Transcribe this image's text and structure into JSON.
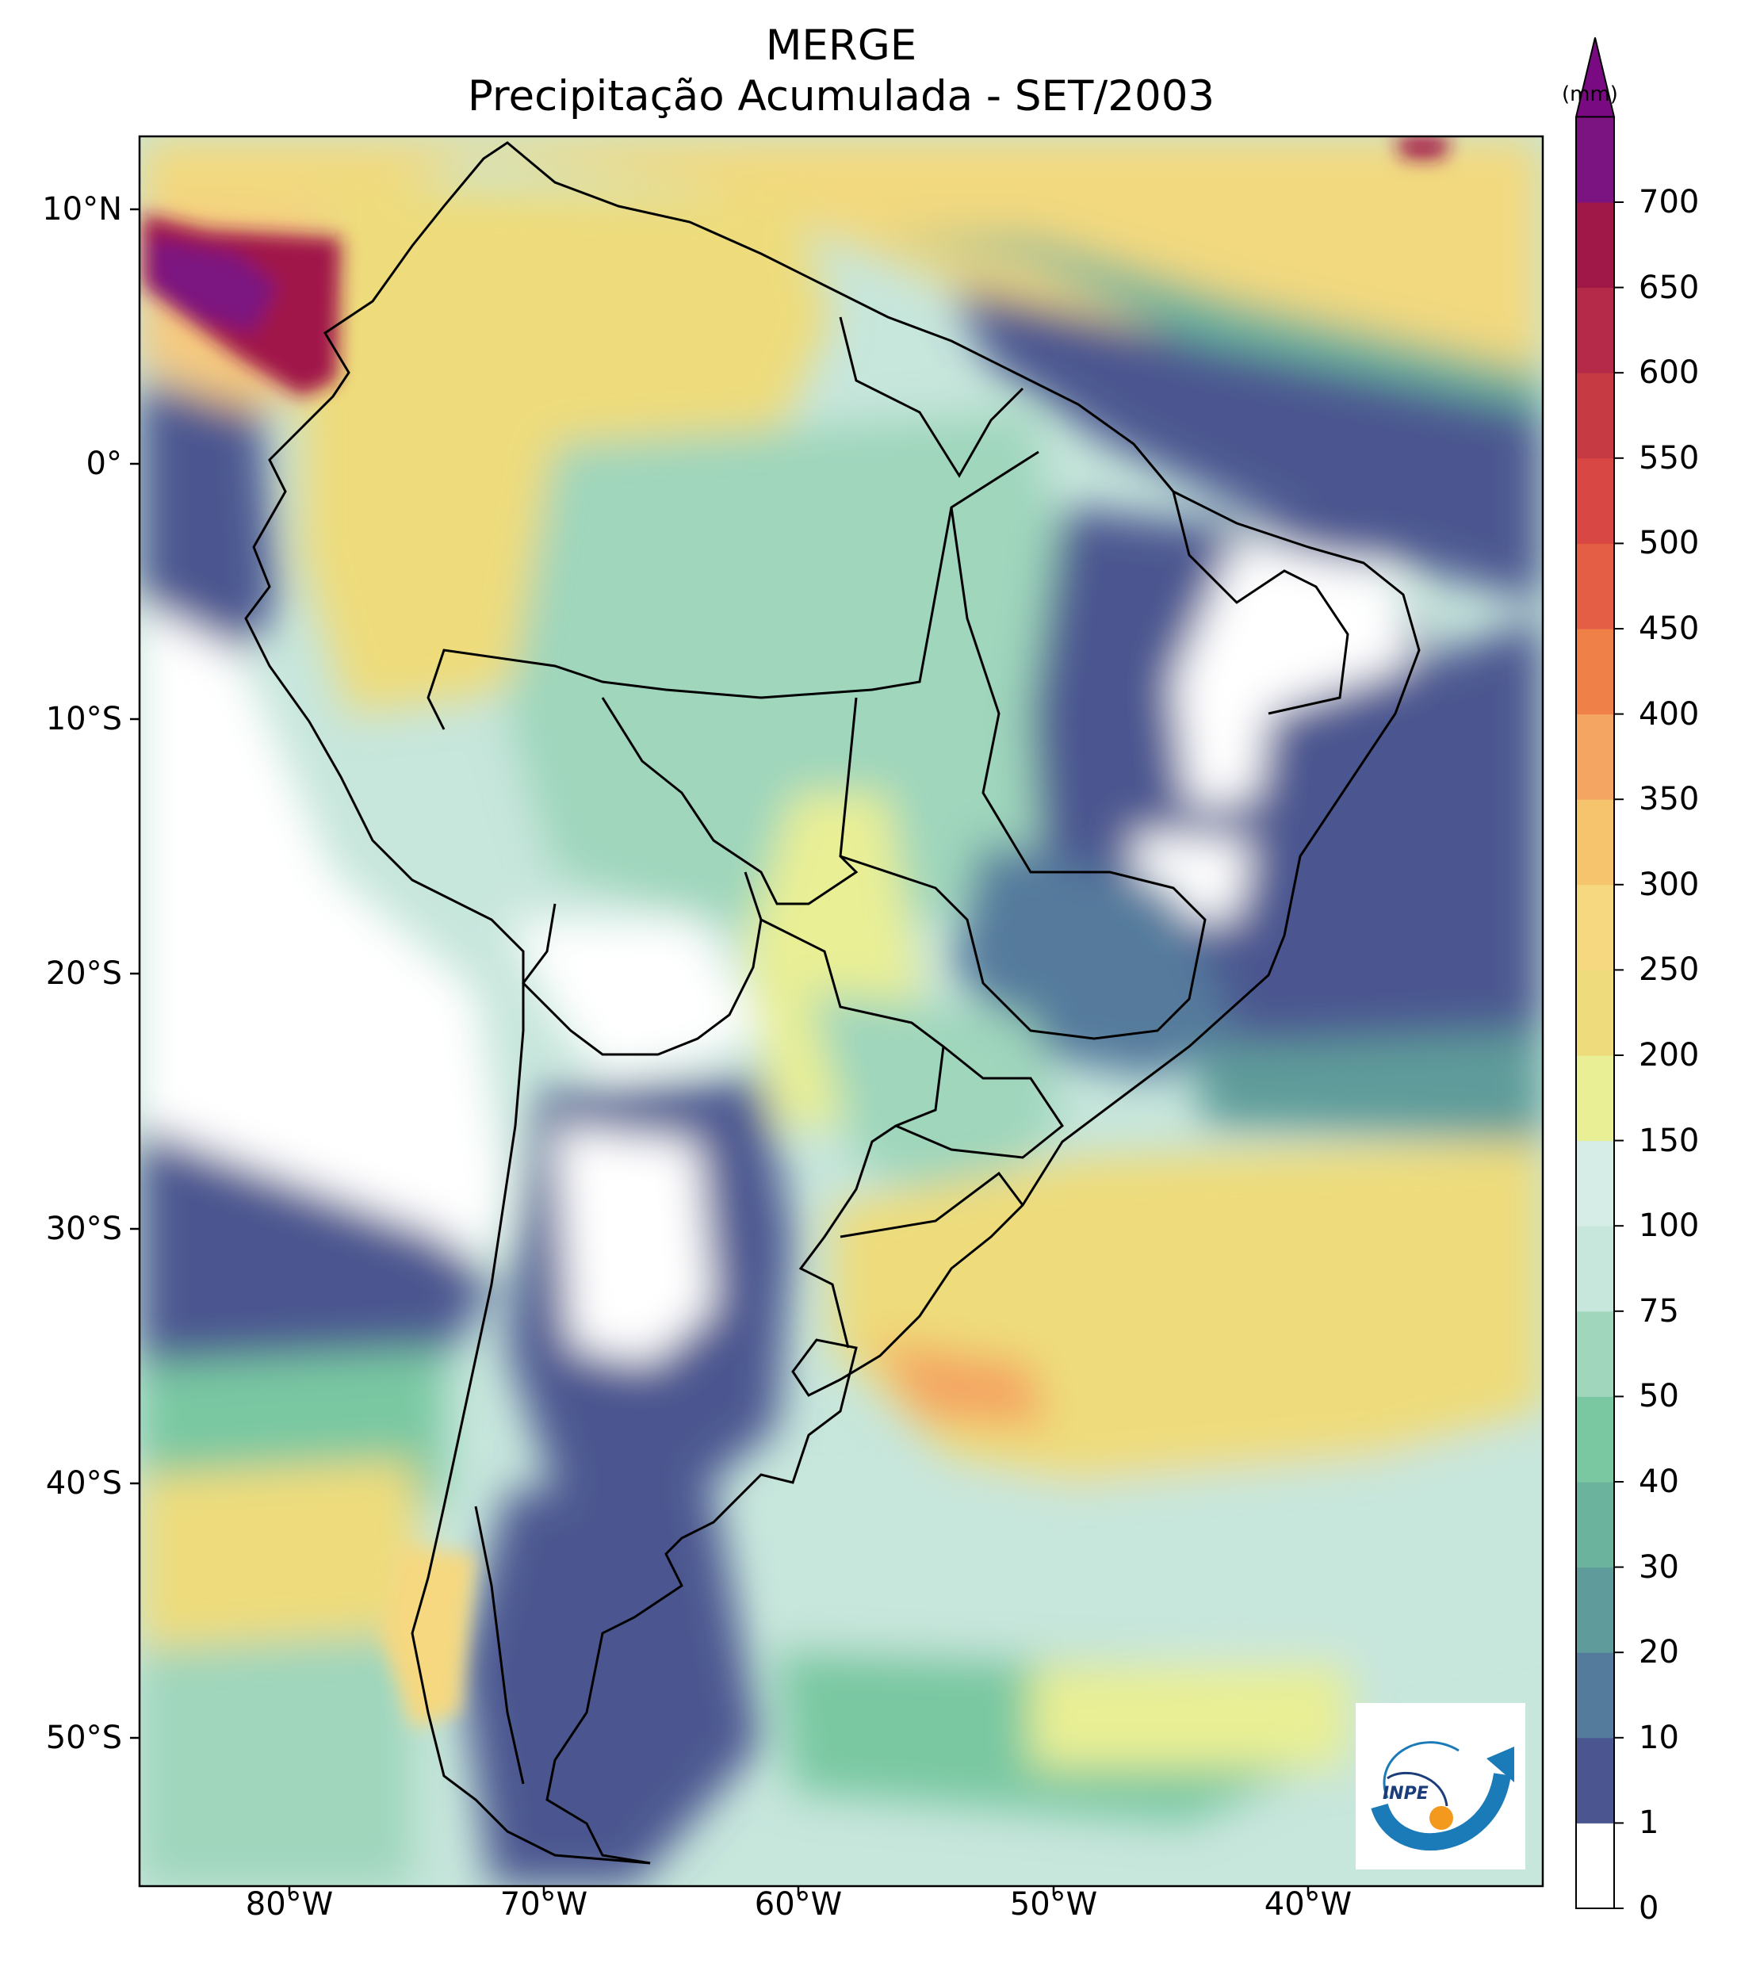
{
  "title": {
    "line1": "MERGE",
    "line2": "Precipitação Acumulada - SET/2003"
  },
  "colorbar": {
    "unit": "(mm)",
    "levels": [
      0,
      1,
      10,
      20,
      30,
      40,
      50,
      75,
      100,
      150,
      200,
      250,
      300,
      350,
      400,
      450,
      500,
      550,
      600,
      650,
      700
    ],
    "labels": [
      "0",
      "1",
      "10",
      "20",
      "30",
      "40",
      "50",
      "75",
      "100",
      "150",
      "200",
      "250",
      "300",
      "350",
      "400",
      "450",
      "500",
      "550",
      "600",
      "650",
      "700"
    ],
    "colors": [
      "#ffffff",
      "#4b5690",
      "#547a9c",
      "#5f9b9a",
      "#6bb39c",
      "#79c8a2",
      "#9fd6bc",
      "#c7e6dc",
      "#d6ece6",
      "#e9ef94",
      "#eedc7c",
      "#f5d880",
      "#f7c46e",
      "#f4a562",
      "#ee8048",
      "#e45d45",
      "#d84743",
      "#c53a43",
      "#b52a48",
      "#a01848",
      "#7b1380"
    ],
    "extend_color": "#7a0a82"
  },
  "lat_labels": [
    "10°N",
    "0°",
    "10°S",
    "20°S",
    "30°S",
    "40°S",
    "50°S"
  ],
  "lon_labels": [
    "80°W",
    "70°W",
    "60°W",
    "50°W",
    "40°W"
  ],
  "logo_text": "INPE"
}
